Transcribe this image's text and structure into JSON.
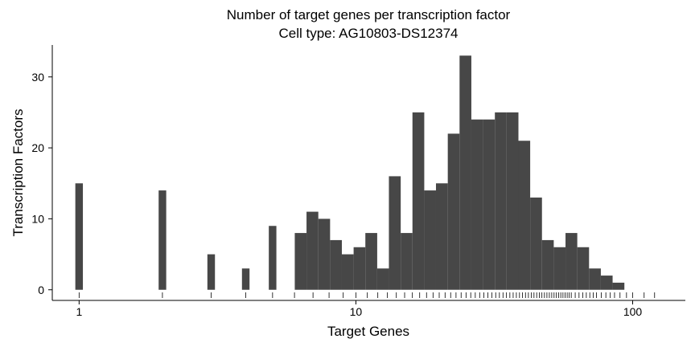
{
  "chart_data": {
    "type": "bar",
    "title": "Number of target genes per transcription factor",
    "subtitle": "Cell type: AG10803-DS12374",
    "xlabel": "Target Genes",
    "ylabel": "Transcription Factors",
    "x_scale": "log10",
    "xlim": [
      0.8,
      155
    ],
    "ylim": [
      -1.5,
      34.5
    ],
    "x_ticks": [
      1,
      10,
      100
    ],
    "x_tick_labels": [
      "1",
      "10",
      "100"
    ],
    "y_ticks": [
      0,
      10,
      20,
      30
    ],
    "y_tick_labels": [
      "0",
      "10",
      "20",
      "30"
    ],
    "grid": false,
    "bar_color": "#474747",
    "bins": [
      {
        "x0": 0.969,
        "x1": 1.032,
        "count": 15
      },
      {
        "x0": 1.938,
        "x1": 2.064,
        "count": 14
      },
      {
        "x0": 2.907,
        "x1": 3.096,
        "count": 5
      },
      {
        "x0": 3.876,
        "x1": 4.128,
        "count": 3
      },
      {
        "x0": 4.846,
        "x1": 5.161,
        "count": 9
      },
      {
        "x0": 6.014,
        "x1": 6.632,
        "count": 8
      },
      {
        "x0": 6.632,
        "x1": 7.315,
        "count": 11
      },
      {
        "x0": 7.315,
        "x1": 8.068,
        "count": 10
      },
      {
        "x0": 8.068,
        "x1": 8.898,
        "count": 7
      },
      {
        "x0": 8.898,
        "x1": 9.813,
        "count": 5
      },
      {
        "x0": 9.813,
        "x1": 10.82,
        "count": 6
      },
      {
        "x0": 10.82,
        "x1": 11.94,
        "count": 8
      },
      {
        "x0": 11.94,
        "x1": 13.16,
        "count": 3
      },
      {
        "x0": 13.16,
        "x1": 14.52,
        "count": 16
      },
      {
        "x0": 14.52,
        "x1": 16.01,
        "count": 8
      },
      {
        "x0": 16.01,
        "x1": 17.66,
        "count": 25
      },
      {
        "x0": 17.66,
        "x1": 19.47,
        "count": 14
      },
      {
        "x0": 19.47,
        "x1": 21.48,
        "count": 15
      },
      {
        "x0": 21.48,
        "x1": 23.69,
        "count": 22
      },
      {
        "x0": 23.69,
        "x1": 26.13,
        "count": 33
      },
      {
        "x0": 26.13,
        "x1": 28.82,
        "count": 24
      },
      {
        "x0": 28.82,
        "x1": 31.78,
        "count": 24
      },
      {
        "x0": 31.78,
        "x1": 35.05,
        "count": 25
      },
      {
        "x0": 35.05,
        "x1": 38.66,
        "count": 25
      },
      {
        "x0": 38.66,
        "x1": 42.63,
        "count": 21
      },
      {
        "x0": 42.63,
        "x1": 47.02,
        "count": 13
      },
      {
        "x0": 47.02,
        "x1": 51.86,
        "count": 7
      },
      {
        "x0": 51.86,
        "x1": 57.2,
        "count": 6
      },
      {
        "x0": 57.2,
        "x1": 63.08,
        "count": 8
      },
      {
        "x0": 63.08,
        "x1": 69.57,
        "count": 6
      },
      {
        "x0": 69.57,
        "x1": 76.73,
        "count": 3
      },
      {
        "x0": 76.73,
        "x1": 84.63,
        "count": 2
      },
      {
        "x0": 84.63,
        "x1": 93.34,
        "count": 1
      }
    ],
    "rug": [
      1,
      2,
      3,
      4,
      5,
      6,
      7,
      8,
      9,
      10,
      11,
      12,
      13,
      14,
      15,
      16,
      17,
      18,
      19,
      20,
      21,
      22,
      23,
      24,
      25,
      26,
      27,
      28,
      29,
      30,
      31,
      32,
      33,
      34,
      35,
      36,
      37,
      38,
      39,
      40,
      41,
      42,
      43,
      44,
      45,
      46,
      47,
      48,
      49,
      50,
      51,
      52,
      53,
      54,
      55,
      56,
      57,
      58,
      59,
      60,
      62,
      64,
      66,
      68,
      70,
      72,
      74,
      77,
      80,
      83,
      86,
      90,
      95,
      100,
      110,
      120
    ]
  }
}
